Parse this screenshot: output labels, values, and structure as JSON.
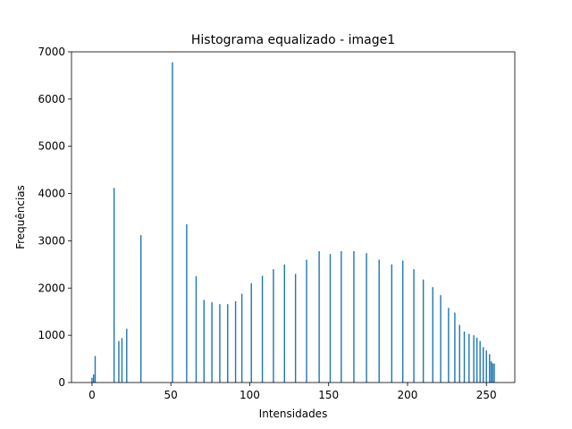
{
  "chart_data": {
    "type": "bar",
    "title": "Histograma equalizado - image1",
    "xlabel": "Intensidades",
    "ylabel": "Frequências",
    "xlim": [
      -13,
      268
    ],
    "ylim": [
      0,
      7000
    ],
    "xticks": [
      0,
      50,
      100,
      150,
      200,
      250
    ],
    "yticks": [
      0,
      1000,
      2000,
      3000,
      4000,
      5000,
      6000,
      7000
    ],
    "grid": false,
    "legend": "none",
    "bar_color": "#1f77b4",
    "series": [
      {
        "x": [
          0,
          1,
          2,
          14,
          17,
          19,
          22,
          31,
          51,
          60,
          66,
          71,
          76,
          81,
          86,
          91,
          95,
          101,
          108,
          115,
          122,
          129,
          136,
          144,
          151,
          158,
          166,
          174,
          182,
          190,
          197,
          204,
          210,
          216,
          221,
          226,
          230,
          233,
          236,
          239,
          242,
          244,
          246,
          248,
          250,
          252,
          253,
          254,
          255
        ],
        "values": [
          100,
          170,
          560,
          4120,
          880,
          940,
          1140,
          3120,
          6780,
          3350,
          2250,
          1750,
          1700,
          1660,
          1660,
          1720,
          1880,
          2100,
          2260,
          2400,
          2500,
          2300,
          2600,
          2780,
          2720,
          2780,
          2780,
          2740,
          2600,
          2500,
          2580,
          2400,
          2180,
          2020,
          1850,
          1580,
          1480,
          1220,
          1080,
          1030,
          1000,
          950,
          880,
          750,
          680,
          600,
          450,
          410,
          400
        ]
      }
    ]
  }
}
